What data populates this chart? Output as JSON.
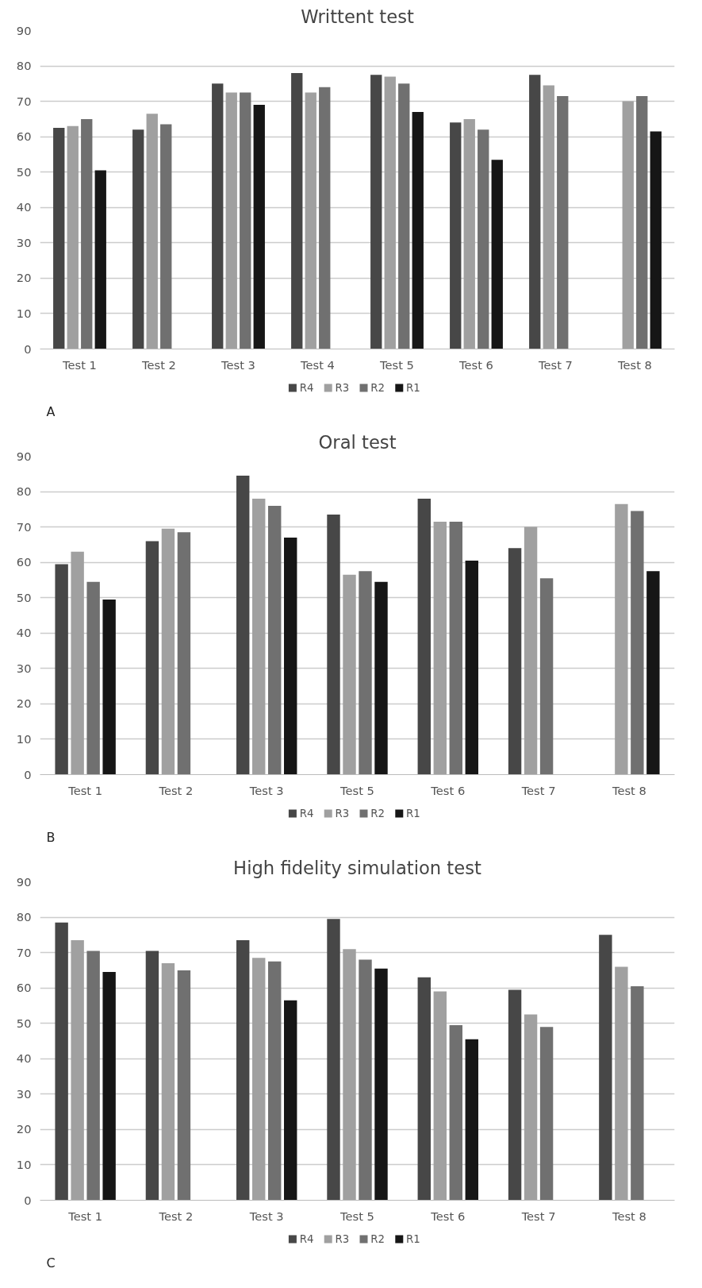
{
  "chart_data": [
    {
      "type": "bar",
      "title": "Writtent test",
      "categories": [
        "Test 1",
        "Test 2",
        "Test 3",
        "Test 4",
        "Test 5",
        "Test 6",
        "Test 7",
        "Test 8"
      ],
      "series": [
        {
          "name": "R4",
          "color": "#474747",
          "values": [
            62.5,
            62,
            75,
            78,
            77.5,
            64,
            77.5,
            null
          ]
        },
        {
          "name": "R3",
          "color": "#a0a0a0",
          "values": [
            63,
            66.5,
            72.5,
            72.5,
            77,
            65,
            74.5,
            70
          ]
        },
        {
          "name": "R2",
          "color": "#707070",
          "values": [
            65,
            63.5,
            72.5,
            74,
            75,
            62,
            71.5,
            71.5
          ]
        },
        {
          "name": "R1",
          "color": "#161616",
          "values": [
            50.5,
            null,
            69,
            null,
            67,
            53.5,
            null,
            61.5
          ]
        }
      ],
      "ylim": [
        0,
        90
      ],
      "yticks": [
        0,
        10,
        20,
        30,
        40,
        50,
        60,
        70,
        80,
        90
      ],
      "grid": "y",
      "legend": "bottom",
      "annotations": [
        "A"
      ]
    },
    {
      "type": "bar",
      "title": "Oral test",
      "categories": [
        "Test 1",
        "Test 2",
        "Test 3",
        "Test 5",
        "Test 6",
        "Test 7",
        "Test 8"
      ],
      "series": [
        {
          "name": "R4",
          "color": "#474747",
          "values": [
            59.5,
            66,
            84.5,
            73.5,
            78,
            64,
            null
          ]
        },
        {
          "name": "R3",
          "color": "#a0a0a0",
          "values": [
            63,
            69.5,
            78,
            56.5,
            71.5,
            70,
            76.5
          ]
        },
        {
          "name": "R2",
          "color": "#707070",
          "values": [
            54.5,
            68.5,
            76,
            57.5,
            71.5,
            55.5,
            74.5
          ]
        },
        {
          "name": "R1",
          "color": "#161616",
          "values": [
            49.5,
            null,
            67,
            54.5,
            60.5,
            null,
            57.5
          ]
        }
      ],
      "ylim": [
        0,
        90
      ],
      "yticks": [
        0,
        10,
        20,
        30,
        40,
        50,
        60,
        70,
        80,
        90
      ],
      "grid": "y",
      "legend": "bottom",
      "annotations": [
        "B"
      ]
    },
    {
      "type": "bar",
      "title": "High fidelity simulation test",
      "categories": [
        "Test 1",
        "Test 2",
        "Test 3",
        "Test 5",
        "Test 6",
        "Test 7",
        "Test 8"
      ],
      "series": [
        {
          "name": "R4",
          "color": "#474747",
          "values": [
            78.5,
            70.5,
            73.5,
            79.5,
            63,
            59.5,
            75
          ]
        },
        {
          "name": "R3",
          "color": "#a0a0a0",
          "values": [
            73.5,
            67,
            68.5,
            71,
            59,
            52.5,
            66
          ]
        },
        {
          "name": "R2",
          "color": "#707070",
          "values": [
            70.5,
            65,
            67.5,
            68,
            49.5,
            49,
            60.5
          ]
        },
        {
          "name": "R1",
          "color": "#161616",
          "values": [
            64.5,
            null,
            56.5,
            65.5,
            45.5,
            null,
            null
          ]
        }
      ],
      "ylim": [
        0,
        90
      ],
      "yticks": [
        0,
        10,
        20,
        30,
        40,
        50,
        60,
        70,
        80,
        90
      ],
      "grid": "y",
      "legend": "bottom",
      "annotations": [
        "C"
      ]
    }
  ]
}
